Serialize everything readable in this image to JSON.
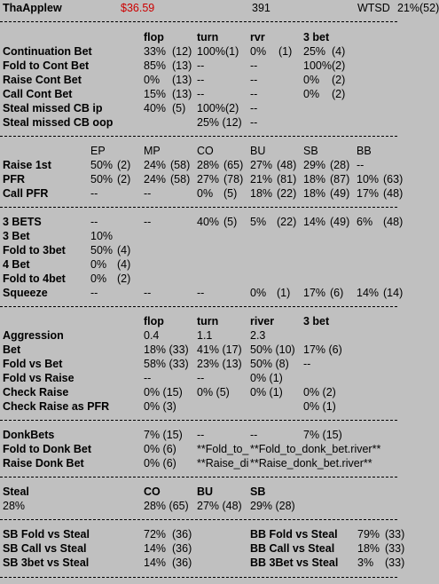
{
  "header": {
    "name": "ThaApplew",
    "amount": "$36.59",
    "hands": "391",
    "wtsd_label": "WTSD",
    "wtsd_value": "21%(52)"
  },
  "cbet": {
    "cols": [
      "flop",
      "turn",
      "rvr",
      "3 bet"
    ],
    "rows": [
      {
        "label": "Continuation Bet",
        "c1": "33%",
        "c1n": "(12)",
        "c2": "100%(1)",
        "c3": "0%",
        "c3n": "(1)",
        "c4": "25%",
        "c4n": "(4)"
      },
      {
        "label": "Fold to Cont Bet",
        "c1": "85%",
        "c1n": "(13)",
        "c2": "--",
        "c3": "--",
        "c3n": "",
        "c4": "100%(2)",
        "c4n": ""
      },
      {
        "label": "Raise Cont Bet",
        "c1": "0%",
        "c1n": "(13)",
        "c2": "--",
        "c3": "--",
        "c3n": "",
        "c4": "0%",
        "c4n": "(2)"
      },
      {
        "label": "Call Cont Bet",
        "c1": "15%",
        "c1n": "(13)",
        "c2": "--",
        "c3": "--",
        "c3n": "",
        "c4": "0%",
        "c4n": "(2)"
      },
      {
        "label": "Steal missed CB ip",
        "c1": "40%",
        "c1n": "(5)",
        "c2": "100%(2)",
        "c3": "--",
        "c3n": "",
        "c4": "",
        "c4n": ""
      },
      {
        "label": "Steal missed CB oop",
        "c1": "",
        "c1n": "",
        "c2": "25%  (12)",
        "c3": "--",
        "c3n": "",
        "c4": "",
        "c4n": ""
      }
    ]
  },
  "positions": {
    "cols": [
      "EP",
      "MP",
      "CO",
      "BU",
      "SB",
      "BB"
    ],
    "rows": [
      {
        "label": "Raise 1st",
        "cells": [
          [
            "50%",
            "(2)"
          ],
          [
            "24%",
            "(58)"
          ],
          [
            "28%",
            "(65)"
          ],
          [
            "27%",
            "(48)"
          ],
          [
            "29%",
            "(28)"
          ],
          [
            "--",
            ""
          ]
        ]
      },
      {
        "label": "PFR",
        "cells": [
          [
            "50%",
            "(2)"
          ],
          [
            "24%",
            "(58)"
          ],
          [
            "27%",
            "(78)"
          ],
          [
            "21%",
            "(81)"
          ],
          [
            "18%",
            "(87)"
          ],
          [
            "10%",
            "(63)"
          ]
        ]
      },
      {
        "label": "Call PFR",
        "cells": [
          [
            "--",
            ""
          ],
          [
            "--",
            ""
          ],
          [
            "0%",
            "(5)"
          ],
          [
            "18%",
            "(22)"
          ],
          [
            "18%",
            "(49)"
          ],
          [
            "17%",
            "(48)"
          ]
        ]
      }
    ]
  },
  "threebet": {
    "rows": [
      {
        "label": "3 BETS",
        "cells": [
          [
            "--",
            ""
          ],
          [
            "--",
            ""
          ],
          [
            "40%",
            "(5)"
          ],
          [
            "5%",
            "(22)"
          ],
          [
            "14%",
            "(49)"
          ],
          [
            "6%",
            "(48)"
          ]
        ]
      },
      {
        "label": "3 Bet",
        "cells": [
          [
            "10%",
            ""
          ]
        ]
      },
      {
        "label": "Fold to 3bet",
        "cells": [
          [
            "50%",
            "(4)"
          ]
        ]
      },
      {
        "label": "4 Bet",
        "cells": [
          [
            "0%",
            "(4)"
          ]
        ]
      },
      {
        "label": "Fold to 4bet",
        "cells": [
          [
            "0%",
            "(2)"
          ]
        ]
      },
      {
        "label": "Squeeze",
        "cells": [
          [
            "--",
            ""
          ],
          [
            "--",
            ""
          ],
          [
            "--",
            ""
          ],
          [
            "0%",
            "(1)"
          ],
          [
            "17%",
            "(6)"
          ],
          [
            "14%",
            "(14)"
          ]
        ]
      }
    ]
  },
  "aggression": {
    "cols": [
      "flop",
      "turn",
      "river",
      "3 bet"
    ],
    "rows": [
      {
        "label": "Aggression",
        "cells": [
          "0.4",
          "1.1",
          "2.3",
          ""
        ]
      },
      {
        "label": "Bet",
        "cells": [
          "18%  (33)",
          "41%  (17)",
          "50%  (10)",
          "17%  (6)"
        ]
      },
      {
        "label": "Fold vs Bet",
        "cells": [
          "58%  (33)",
          "23%  (13)",
          "50%  (8)",
          "--"
        ]
      },
      {
        "label": "Fold vs Raise",
        "cells": [
          "--",
          "--",
          "0%  (1)",
          ""
        ]
      },
      {
        "label": "Check Raise",
        "cells": [
          "0%  (15)",
          "0%  (5)",
          "0%  (1)",
          "0%  (2)"
        ]
      },
      {
        "label": "Check Raise as PFR",
        "cells": [
          "0%  (3)",
          "",
          "",
          "0%  (1)"
        ]
      }
    ]
  },
  "donk": {
    "rows": [
      {
        "label": "DonkBets",
        "cells": [
          "7%  (15)",
          "--",
          "--",
          "7%  (15)"
        ]
      },
      {
        "label": "Fold to Donk Bet",
        "cells": [
          "0%  (6)",
          "**Fold_to_",
          "**Fold_to_donk_bet.river**",
          ""
        ]
      },
      {
        "label": "Raise Donk Bet",
        "cells": [
          "0%  (6)",
          "**Raise_di",
          "**Raise_donk_bet.river**",
          ""
        ]
      }
    ]
  },
  "steal": {
    "label": "Steal",
    "total": "28%",
    "cols": [
      "CO",
      "BU",
      "SB"
    ],
    "cells": [
      "28%  (65)",
      "27%  (48)",
      "29%  (28)"
    ]
  },
  "blinds": {
    "left": [
      {
        "label": "SB Fold vs Steal",
        "value": "72%",
        "n": "(36)"
      },
      {
        "label": "SB Call vs Steal",
        "value": "14%",
        "n": "(36)"
      },
      {
        "label": "SB 3bet vs Steal",
        "value": "14%",
        "n": "(36)"
      }
    ],
    "right": [
      {
        "label": "BB Fold vs Steal",
        "value": "79%",
        "n": "(33)"
      },
      {
        "label": "BB Call vs Steal",
        "value": "18%",
        "n": "(33)"
      },
      {
        "label": "BB 3Bet vs Steal",
        "value": "3%",
        "n": "(33)"
      }
    ]
  }
}
